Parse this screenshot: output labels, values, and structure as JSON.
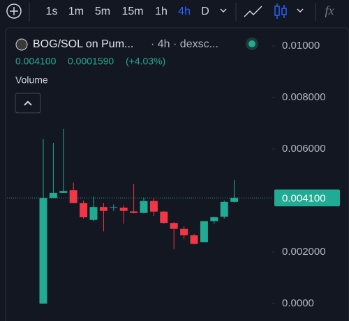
{
  "toolbar": {
    "intervals": [
      "1s",
      "1m",
      "5m",
      "15m",
      "1h",
      "4h",
      "D"
    ],
    "active_interval": 5,
    "indicators_label": "fx"
  },
  "header": {
    "pair": "BOG/SOL on Pum...",
    "details": "· 4h · dexsc...",
    "price": "0.004100",
    "change": "0.0001590",
    "change_percent": "(+4.03%)",
    "volume_label": "Volume"
  },
  "chart_data": {
    "type": "candlestick",
    "up_color": "#22ab94",
    "down_color": "#f23645",
    "series": [
      {
        "open": [
          0,
          0.0041,
          0.0043,
          0.0044,
          0.0039,
          0.00325,
          0.00375,
          0.00372,
          0.00372,
          0.00358,
          0.00352,
          0.00398,
          0.00357,
          0.00313,
          0.0029,
          0.00265,
          0.00238,
          0.0032,
          0.00337,
          0.00395
        ],
        "high": [
          0.00638,
          0.00624,
          0.00678,
          0.0047,
          0.004,
          0.00416,
          0.0039,
          0.00385,
          0.0038,
          0.00465,
          0.0041,
          0.0041,
          0.0036,
          0.00316,
          0.003,
          0.0027,
          0.0032,
          0.00338,
          0.004,
          0.0048
        ],
        "low": [
          0,
          0.0041,
          0.0043,
          0.0039,
          0.0033,
          0.0032,
          0.0028,
          0.0036,
          0.0031,
          0.0035,
          0.0035,
          0.0034,
          0.0031,
          0.0021,
          0.0025,
          0.0023,
          0.00238,
          0.0031,
          0.0033,
          0.00392
        ],
        "close": [
          0.0041,
          0.0043,
          0.00437,
          0.0039,
          0.00335,
          0.00375,
          0.0036,
          0.00374,
          0.0036,
          0.00352,
          0.00398,
          0.00357,
          0.00313,
          0.0029,
          0.00265,
          0.00232,
          0.0032,
          0.00335,
          0.00395,
          0.0041
        ]
      }
    ],
    "ylim": [
      -0.000676,
      0.01054
    ],
    "yticks": [
      {
        "value": 0,
        "label": "0.0000"
      },
      {
        "value": 0.002,
        "label": "0.002000"
      },
      {
        "value": 0.006,
        "label": "0.006000"
      },
      {
        "value": 0.008,
        "label": "0.008000"
      },
      {
        "value": 0.01,
        "label": "0.01000"
      }
    ],
    "current_price": {
      "value": 0.0041,
      "label": "0.004100"
    }
  }
}
